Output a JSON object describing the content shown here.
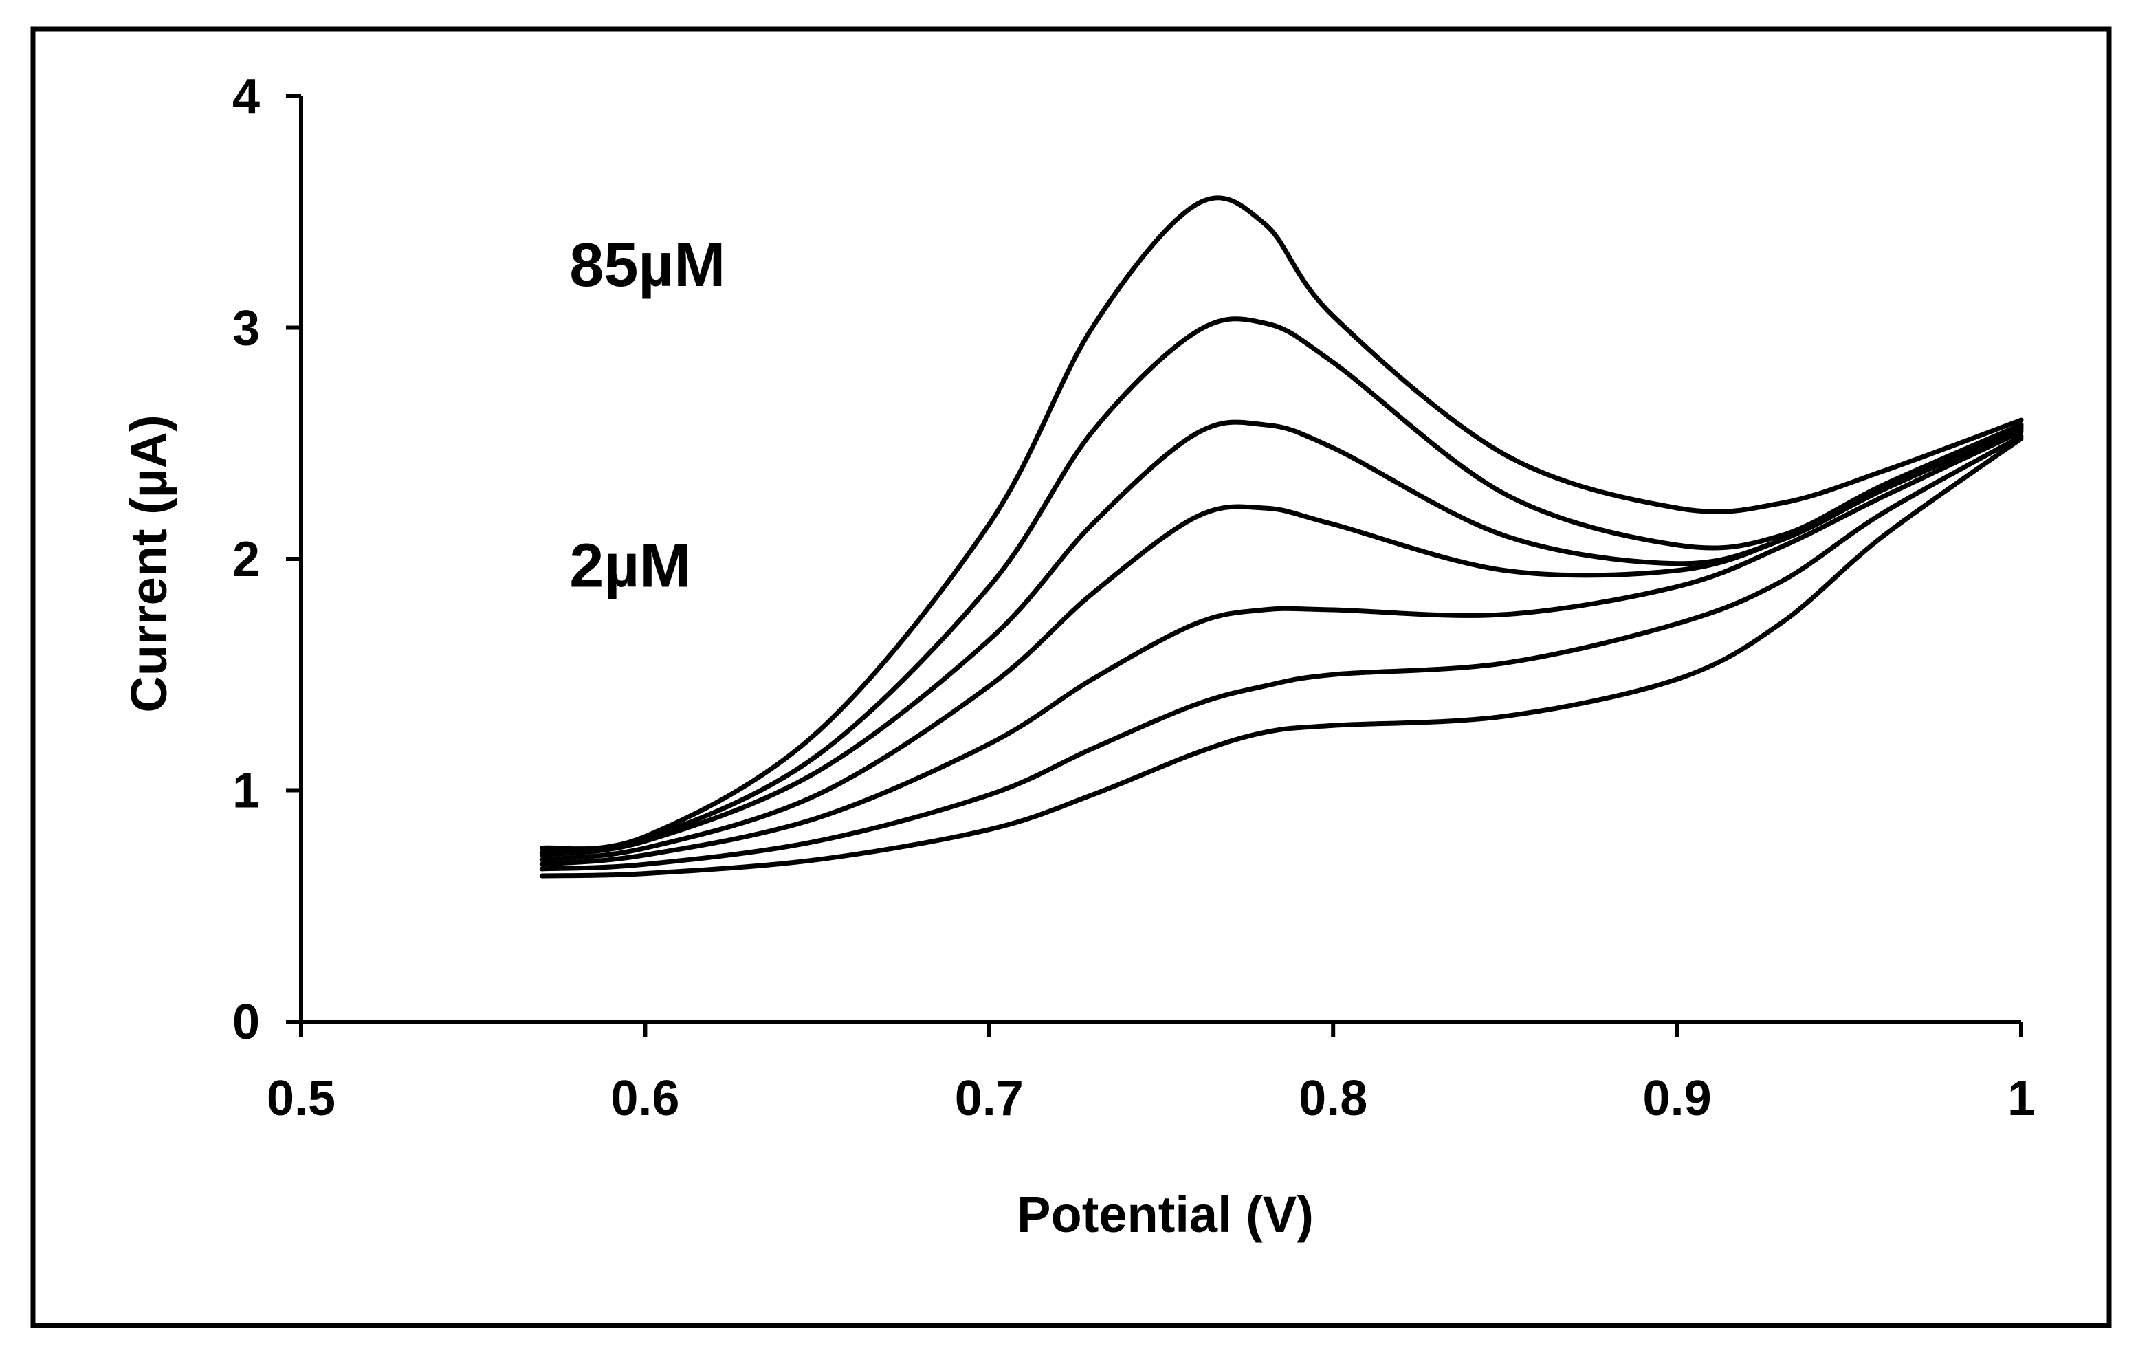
{
  "chart_data": {
    "type": "line",
    "title": "",
    "xlabel": "Potential (V)",
    "ylabel": "Current (µA)",
    "xlim": [
      0.5,
      1.0
    ],
    "ylim": [
      0,
      4
    ],
    "xticks": [
      0.5,
      0.6,
      0.7,
      0.8,
      0.9,
      1.0
    ],
    "xtick_labels": [
      "0.5",
      "0.6",
      "0.7",
      "0.8",
      "0.9",
      "1"
    ],
    "yticks": [
      0,
      1,
      2,
      3,
      4
    ],
    "ytick_labels": [
      "0",
      "1",
      "2",
      "3",
      "4"
    ],
    "grid": false,
    "legend": "none",
    "annotations": [
      {
        "text": "85µM",
        "x": 0.578,
        "y": 3.18
      },
      {
        "text": "2µM",
        "x": 0.578,
        "y": 1.88
      }
    ],
    "series": [
      {
        "x": [
          0.57,
          0.6,
          0.65,
          0.7,
          0.73,
          0.76,
          0.78,
          0.8,
          0.85,
          0.9,
          0.93,
          0.96,
          1.0
        ],
        "values": [
          0.63,
          0.64,
          0.7,
          0.83,
          0.98,
          1.16,
          1.25,
          1.28,
          1.32,
          1.48,
          1.72,
          2.1,
          2.52
        ]
      },
      {
        "x": [
          0.57,
          0.6,
          0.65,
          0.7,
          0.73,
          0.76,
          0.78,
          0.8,
          0.85,
          0.9,
          0.93,
          0.96,
          1.0
        ],
        "values": [
          0.66,
          0.68,
          0.78,
          0.98,
          1.18,
          1.37,
          1.45,
          1.5,
          1.55,
          1.72,
          1.9,
          2.2,
          2.53
        ]
      },
      {
        "x": [
          0.57,
          0.6,
          0.65,
          0.7,
          0.73,
          0.76,
          0.78,
          0.8,
          0.85,
          0.9,
          0.93,
          0.96,
          1.0
        ],
        "values": [
          0.68,
          0.72,
          0.88,
          1.2,
          1.48,
          1.72,
          1.78,
          1.78,
          1.76,
          1.88,
          2.05,
          2.27,
          2.55
        ]
      },
      {
        "x": [
          0.57,
          0.6,
          0.65,
          0.7,
          0.73,
          0.76,
          0.78,
          0.8,
          0.85,
          0.9,
          0.93,
          0.96,
          1.0
        ],
        "values": [
          0.7,
          0.75,
          0.98,
          1.45,
          1.85,
          2.18,
          2.22,
          2.15,
          1.95,
          1.95,
          2.08,
          2.3,
          2.56
        ]
      },
      {
        "x": [
          0.57,
          0.6,
          0.65,
          0.7,
          0.73,
          0.76,
          0.78,
          0.8,
          0.85,
          0.9,
          0.93,
          0.96,
          1.0
        ],
        "values": [
          0.72,
          0.78,
          1.08,
          1.65,
          2.15,
          2.54,
          2.58,
          2.48,
          2.1,
          1.98,
          2.08,
          2.3,
          2.57
        ]
      },
      {
        "x": [
          0.57,
          0.6,
          0.65,
          0.7,
          0.73,
          0.76,
          0.78,
          0.8,
          0.85,
          0.9,
          0.93,
          0.96,
          1.0
        ],
        "values": [
          0.73,
          0.79,
          1.15,
          1.88,
          2.55,
          2.98,
          3.02,
          2.85,
          2.28,
          2.06,
          2.1,
          2.32,
          2.58
        ]
      },
      {
        "x": [
          0.57,
          0.6,
          0.65,
          0.7,
          0.73,
          0.76,
          0.78,
          0.8,
          0.85,
          0.9,
          0.93,
          0.96,
          1.0
        ],
        "values": [
          0.75,
          0.8,
          1.25,
          2.15,
          3.0,
          3.53,
          3.45,
          3.05,
          2.45,
          2.22,
          2.24,
          2.38,
          2.6
        ]
      }
    ]
  }
}
